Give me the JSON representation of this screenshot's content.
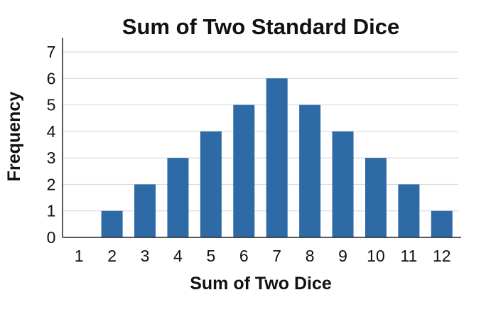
{
  "chart_data": {
    "type": "bar",
    "title": "Sum of Two Standard Dice",
    "xlabel": "Sum of Two Dice",
    "ylabel": "Frequency",
    "categories": [
      "1",
      "2",
      "3",
      "4",
      "5",
      "6",
      "7",
      "8",
      "9",
      "10",
      "11",
      "12"
    ],
    "values": [
      0,
      1,
      2,
      3,
      4,
      5,
      6,
      5,
      4,
      3,
      2,
      1
    ],
    "ylim": [
      0,
      7
    ],
    "yticks": [
      "0",
      "1",
      "2",
      "3",
      "4",
      "5",
      "6",
      "7"
    ],
    "grid": true,
    "bar_color": "#2e6aa6",
    "grid_color": "#d4d4d4",
    "axis_color": "#222222"
  }
}
